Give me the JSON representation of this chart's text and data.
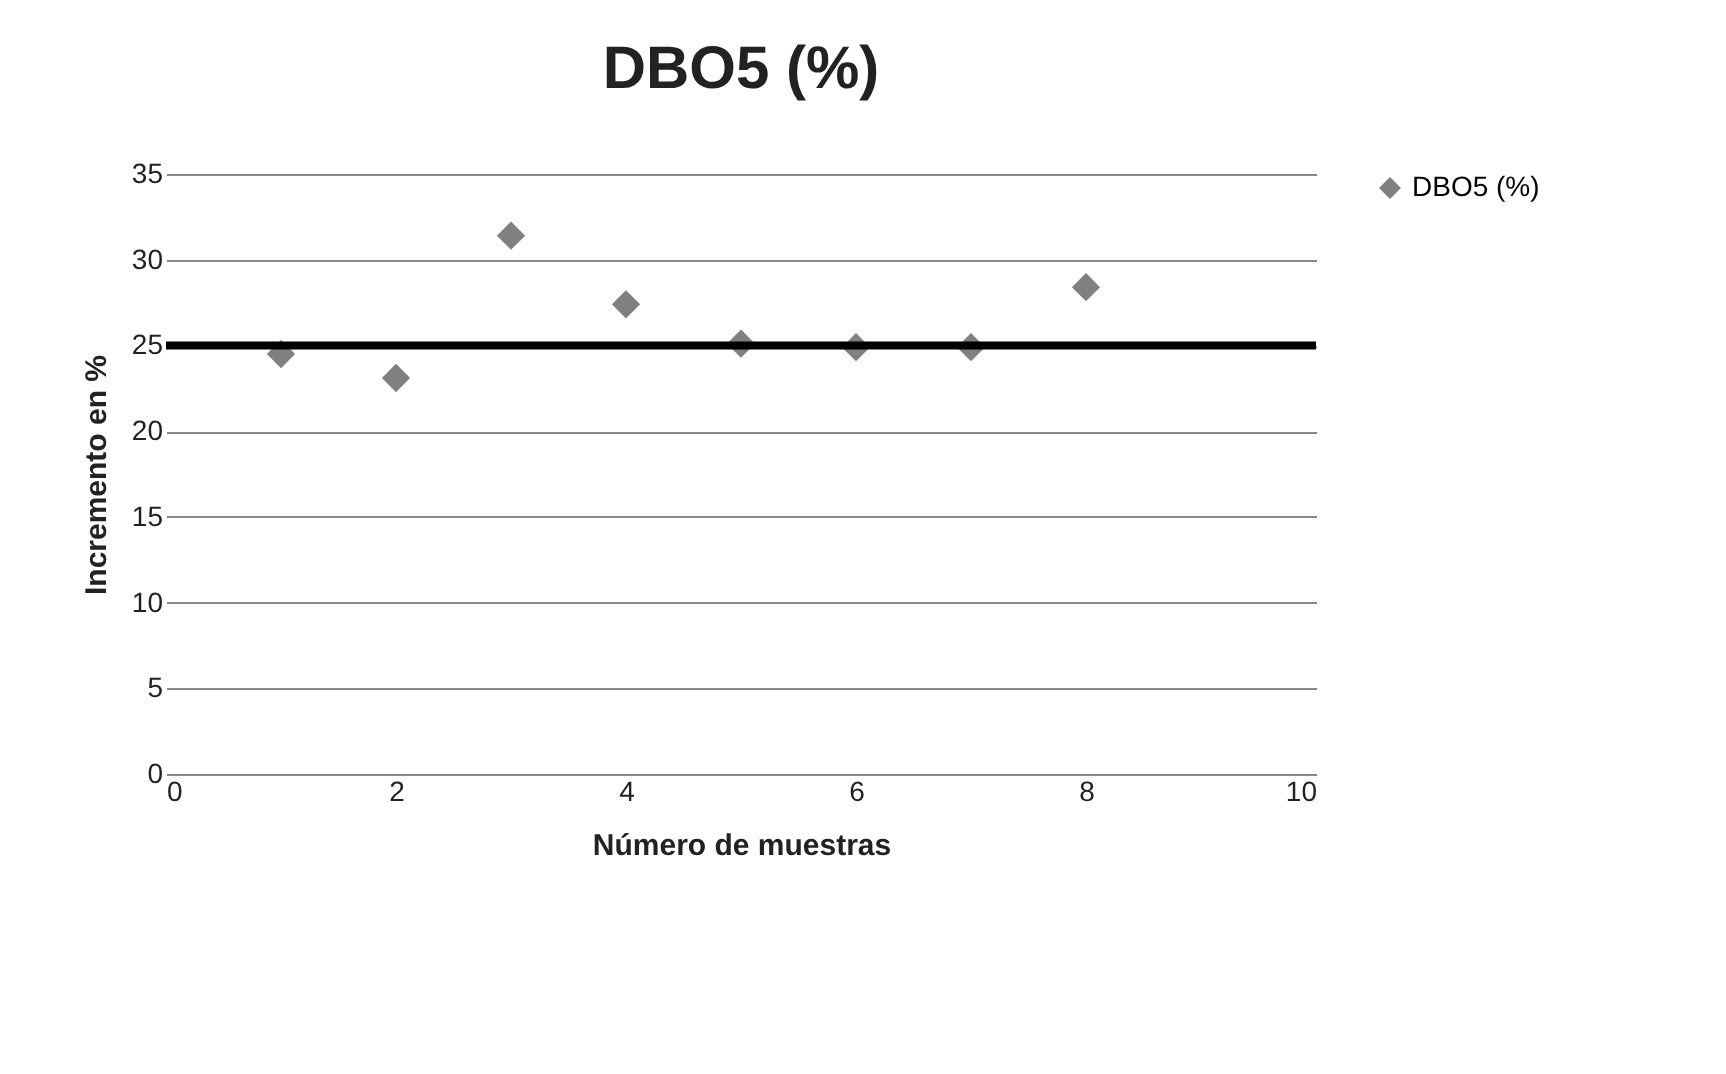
{
  "chart_data": {
    "type": "scatter",
    "title": "DBO5 (%)",
    "xlabel": "Número de muestras",
    "ylabel": "Incremento en %",
    "x": [
      1,
      2,
      3,
      4,
      5,
      6,
      7,
      8
    ],
    "series": [
      {
        "name": "DBO5 (%)",
        "color": "#808080",
        "values": [
          24.5,
          23.1,
          31.4,
          27.4,
          25.1,
          24.9,
          24.9,
          28.4
        ]
      }
    ],
    "xlim": [
      0,
      10
    ],
    "xticks": [
      0,
      2,
      4,
      6,
      8,
      10
    ],
    "ylim": [
      0,
      35
    ],
    "yticks": [
      0,
      5,
      10,
      15,
      20,
      25,
      30,
      35
    ],
    "grid": "y",
    "legend": "right",
    "marker": "diamond",
    "ref_lines": [
      {
        "axis": "y",
        "value": 25,
        "color": "#000000"
      }
    ]
  }
}
